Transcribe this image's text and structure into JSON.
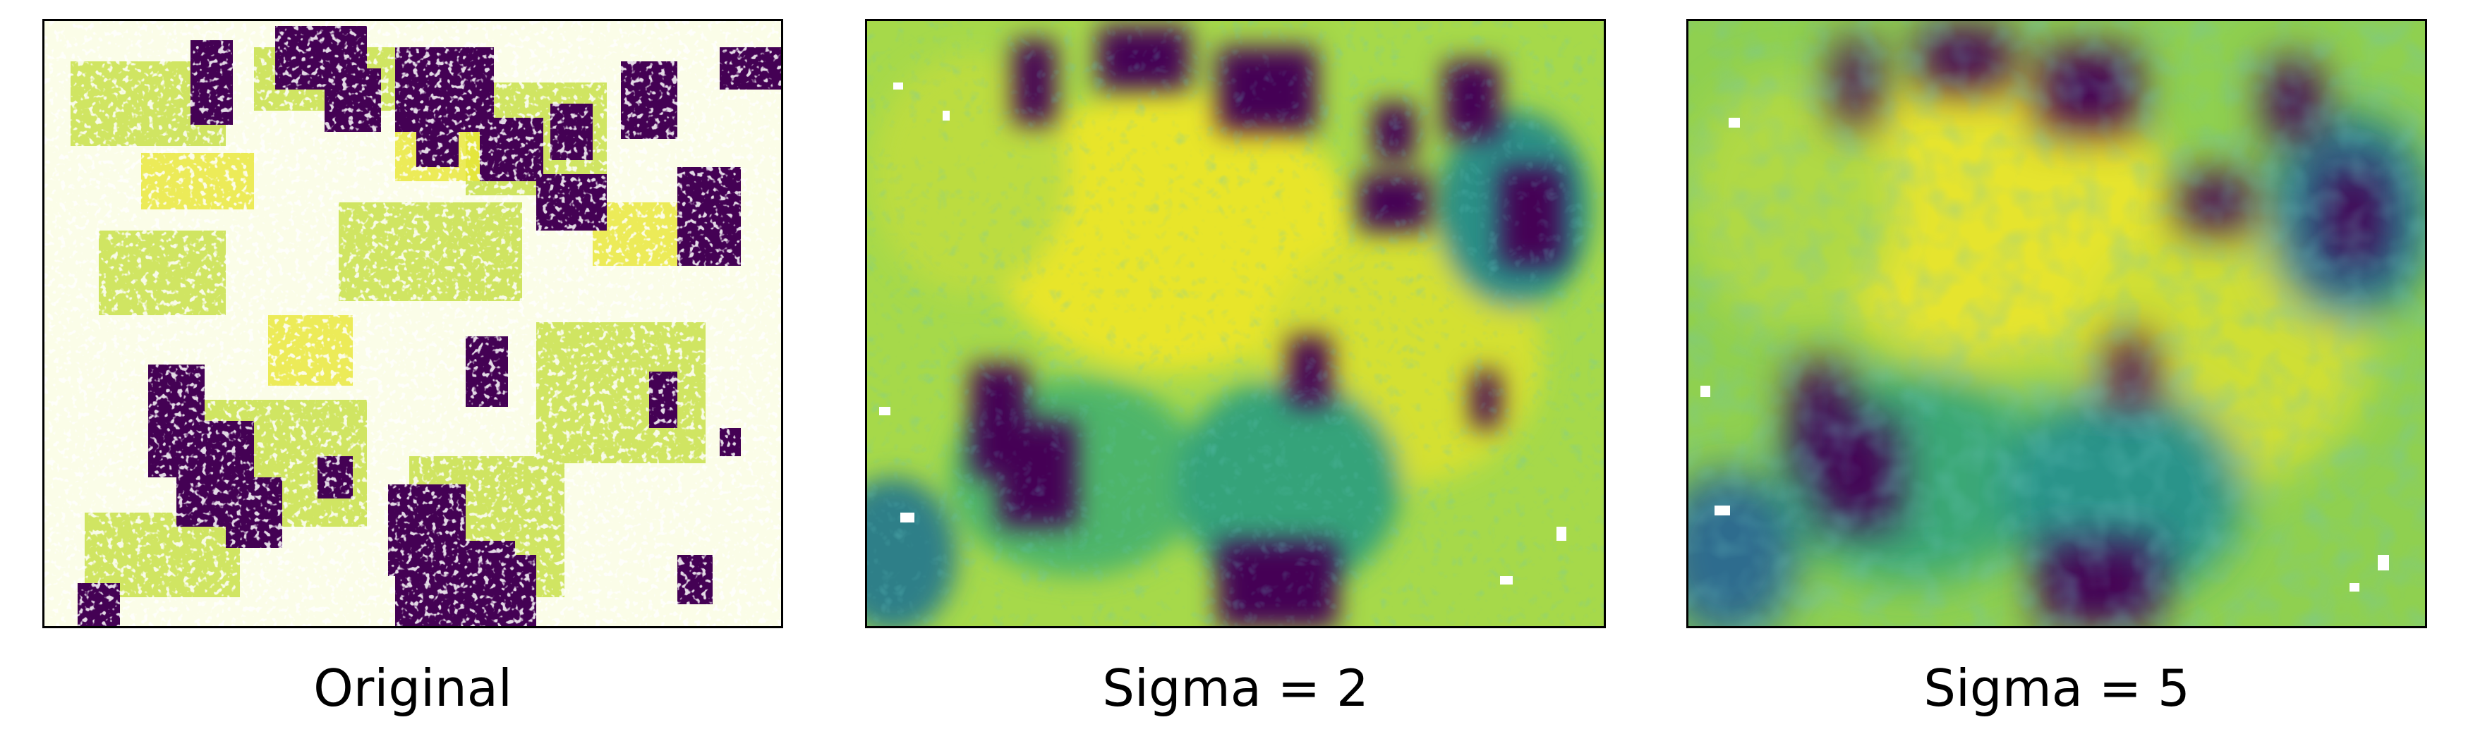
{
  "figure": {
    "panels": [
      {
        "id": "original",
        "caption": "Original",
        "style": "raw"
      },
      {
        "id": "sigma2",
        "caption": "Sigma = 2",
        "style": "smooth2"
      },
      {
        "id": "sigma5",
        "caption": "Sigma = 5",
        "style": "smooth5"
      }
    ],
    "colormap": [
      "#440154",
      "#3b528b",
      "#21918c",
      "#5ec962",
      "#fde725"
    ],
    "nodata_color": "#ffffff"
  }
}
